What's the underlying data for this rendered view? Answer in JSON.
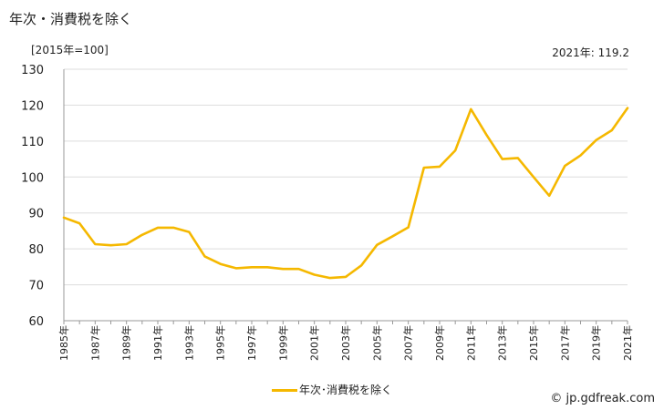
{
  "title": "年次・消費税を除く",
  "unit_label": "[2015年=100]",
  "latest_note": "2021年: 119.2",
  "credit": "© jp.gdfreak.com",
  "colors": {
    "series": "#f5b800",
    "grid": "#dddddd",
    "axis": "#999999"
  },
  "chart_data": {
    "type": "line",
    "title": "年次・消費税を除く",
    "ylabel": "[2015年=100]",
    "xlabel": "",
    "ylim": [
      60,
      130
    ],
    "yticks": [
      60,
      70,
      80,
      90,
      100,
      110,
      120,
      130
    ],
    "grid": true,
    "legend_position": "bottom",
    "x": [
      1985,
      1986,
      1987,
      1988,
      1989,
      1990,
      1991,
      1992,
      1993,
      1994,
      1995,
      1996,
      1997,
      1998,
      1999,
      2000,
      2001,
      2002,
      2003,
      2004,
      2005,
      2006,
      2007,
      2008,
      2009,
      2010,
      2011,
      2012,
      2013,
      2014,
      2015,
      2016,
      2017,
      2018,
      2019,
      2020,
      2021
    ],
    "xtick_labels": [
      "1985年",
      "1987年",
      "1989年",
      "1991年",
      "1993年",
      "1995年",
      "1997年",
      "1999年",
      "2001年",
      "2003年",
      "2005年",
      "2007年",
      "2009年",
      "2011年",
      "2013年",
      "2015年",
      "2017年",
      "2019年",
      "2021年"
    ],
    "series": [
      {
        "name": "年次･消費税を除く",
        "values": [
          88.7,
          87.1,
          81.3,
          81.0,
          81.3,
          83.9,
          85.9,
          85.9,
          84.7,
          77.9,
          75.8,
          74.6,
          74.9,
          74.9,
          74.4,
          74.4,
          72.8,
          71.9,
          72.2,
          75.4,
          81.1,
          83.5,
          86.0,
          102.6,
          102.9,
          107.4,
          118.9,
          111.7,
          105.0,
          105.3,
          100.0,
          94.8,
          103.1,
          106.0,
          110.3,
          113.0,
          119.2
        ]
      }
    ]
  }
}
